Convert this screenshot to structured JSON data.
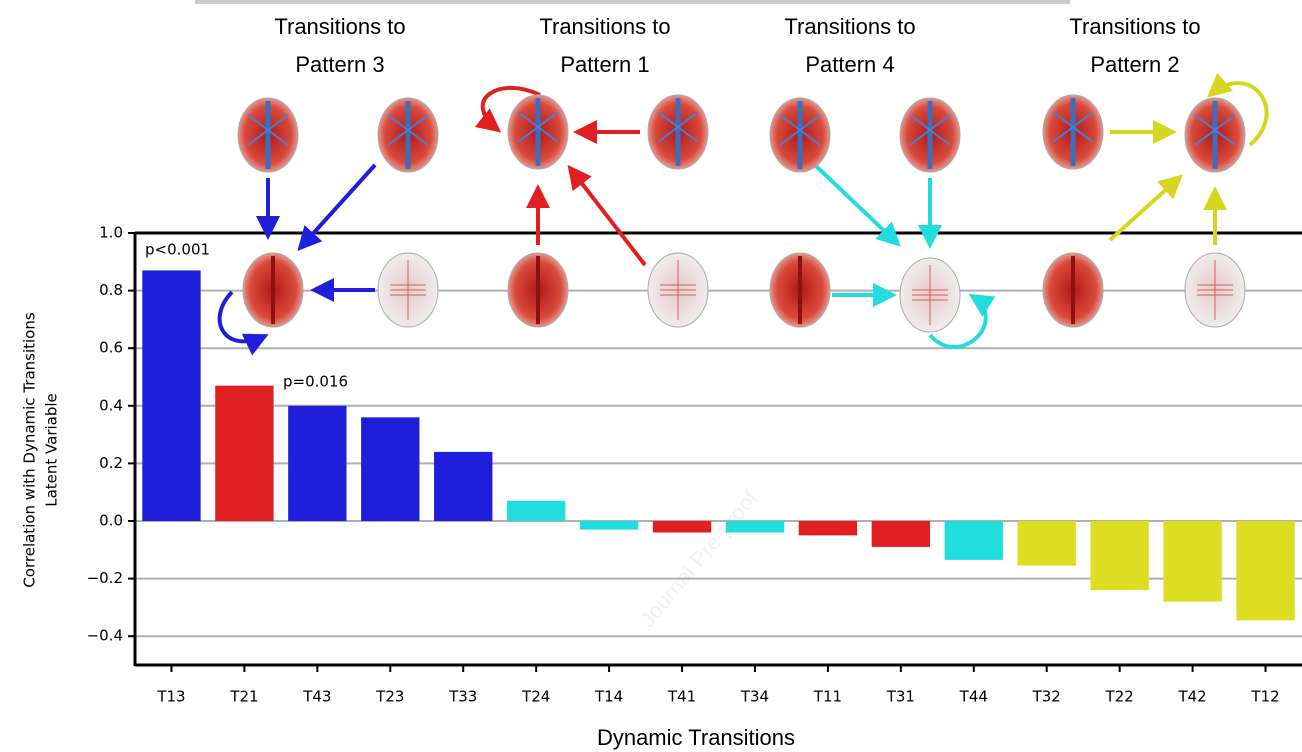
{
  "chart_data": {
    "type": "bar",
    "x_label": "Dynamic Transitions",
    "y_label_lines": [
      "Correlation with Dynamic Transitions",
      "Latent Variable"
    ],
    "categories": [
      "T13",
      "T21",
      "T43",
      "T23",
      "T33",
      "T24",
      "T14",
      "T41",
      "T34",
      "T11",
      "T31",
      "T44",
      "T32",
      "T22",
      "T42",
      "T12"
    ],
    "values": [
      0.87,
      0.47,
      0.4,
      0.36,
      0.24,
      0.07,
      -0.03,
      -0.04,
      -0.04,
      -0.05,
      -0.09,
      -0.135,
      -0.155,
      -0.24,
      -0.28,
      -0.345
    ],
    "colors": [
      "#1f1fdb",
      "#e02020",
      "#1f1fdb",
      "#1f1fdb",
      "#1f1fdb",
      "#22dddd",
      "#22dddd",
      "#e02020",
      "#22dddd",
      "#e02020",
      "#e02020",
      "#22dddd",
      "#dddd22",
      "#dddd22",
      "#dddd22",
      "#dddd22"
    ],
    "ylim": [
      -0.5,
      1.0
    ],
    "yticks": [
      {
        "value": -0.4,
        "label": "−0.4"
      },
      {
        "value": -0.2,
        "label": "−0.2"
      },
      {
        "value": 0,
        "label": "0.0"
      },
      0.2,
      0.4,
      0.6,
      0.8,
      {
        "value": 1.0,
        "label": "1.0"
      }
    ],
    "grid": true,
    "annotations": [
      "p<0.001",
      "p=0.016"
    ],
    "group_titles": [
      [
        "Transitions to",
        "Pattern 3"
      ],
      [
        "Transitions to",
        "Pattern 1"
      ],
      [
        "Transitions to",
        "Pattern 4"
      ],
      [
        "Transitions to",
        "Pattern 2"
      ]
    ],
    "watermark": "Journal Pre-proof"
  }
}
